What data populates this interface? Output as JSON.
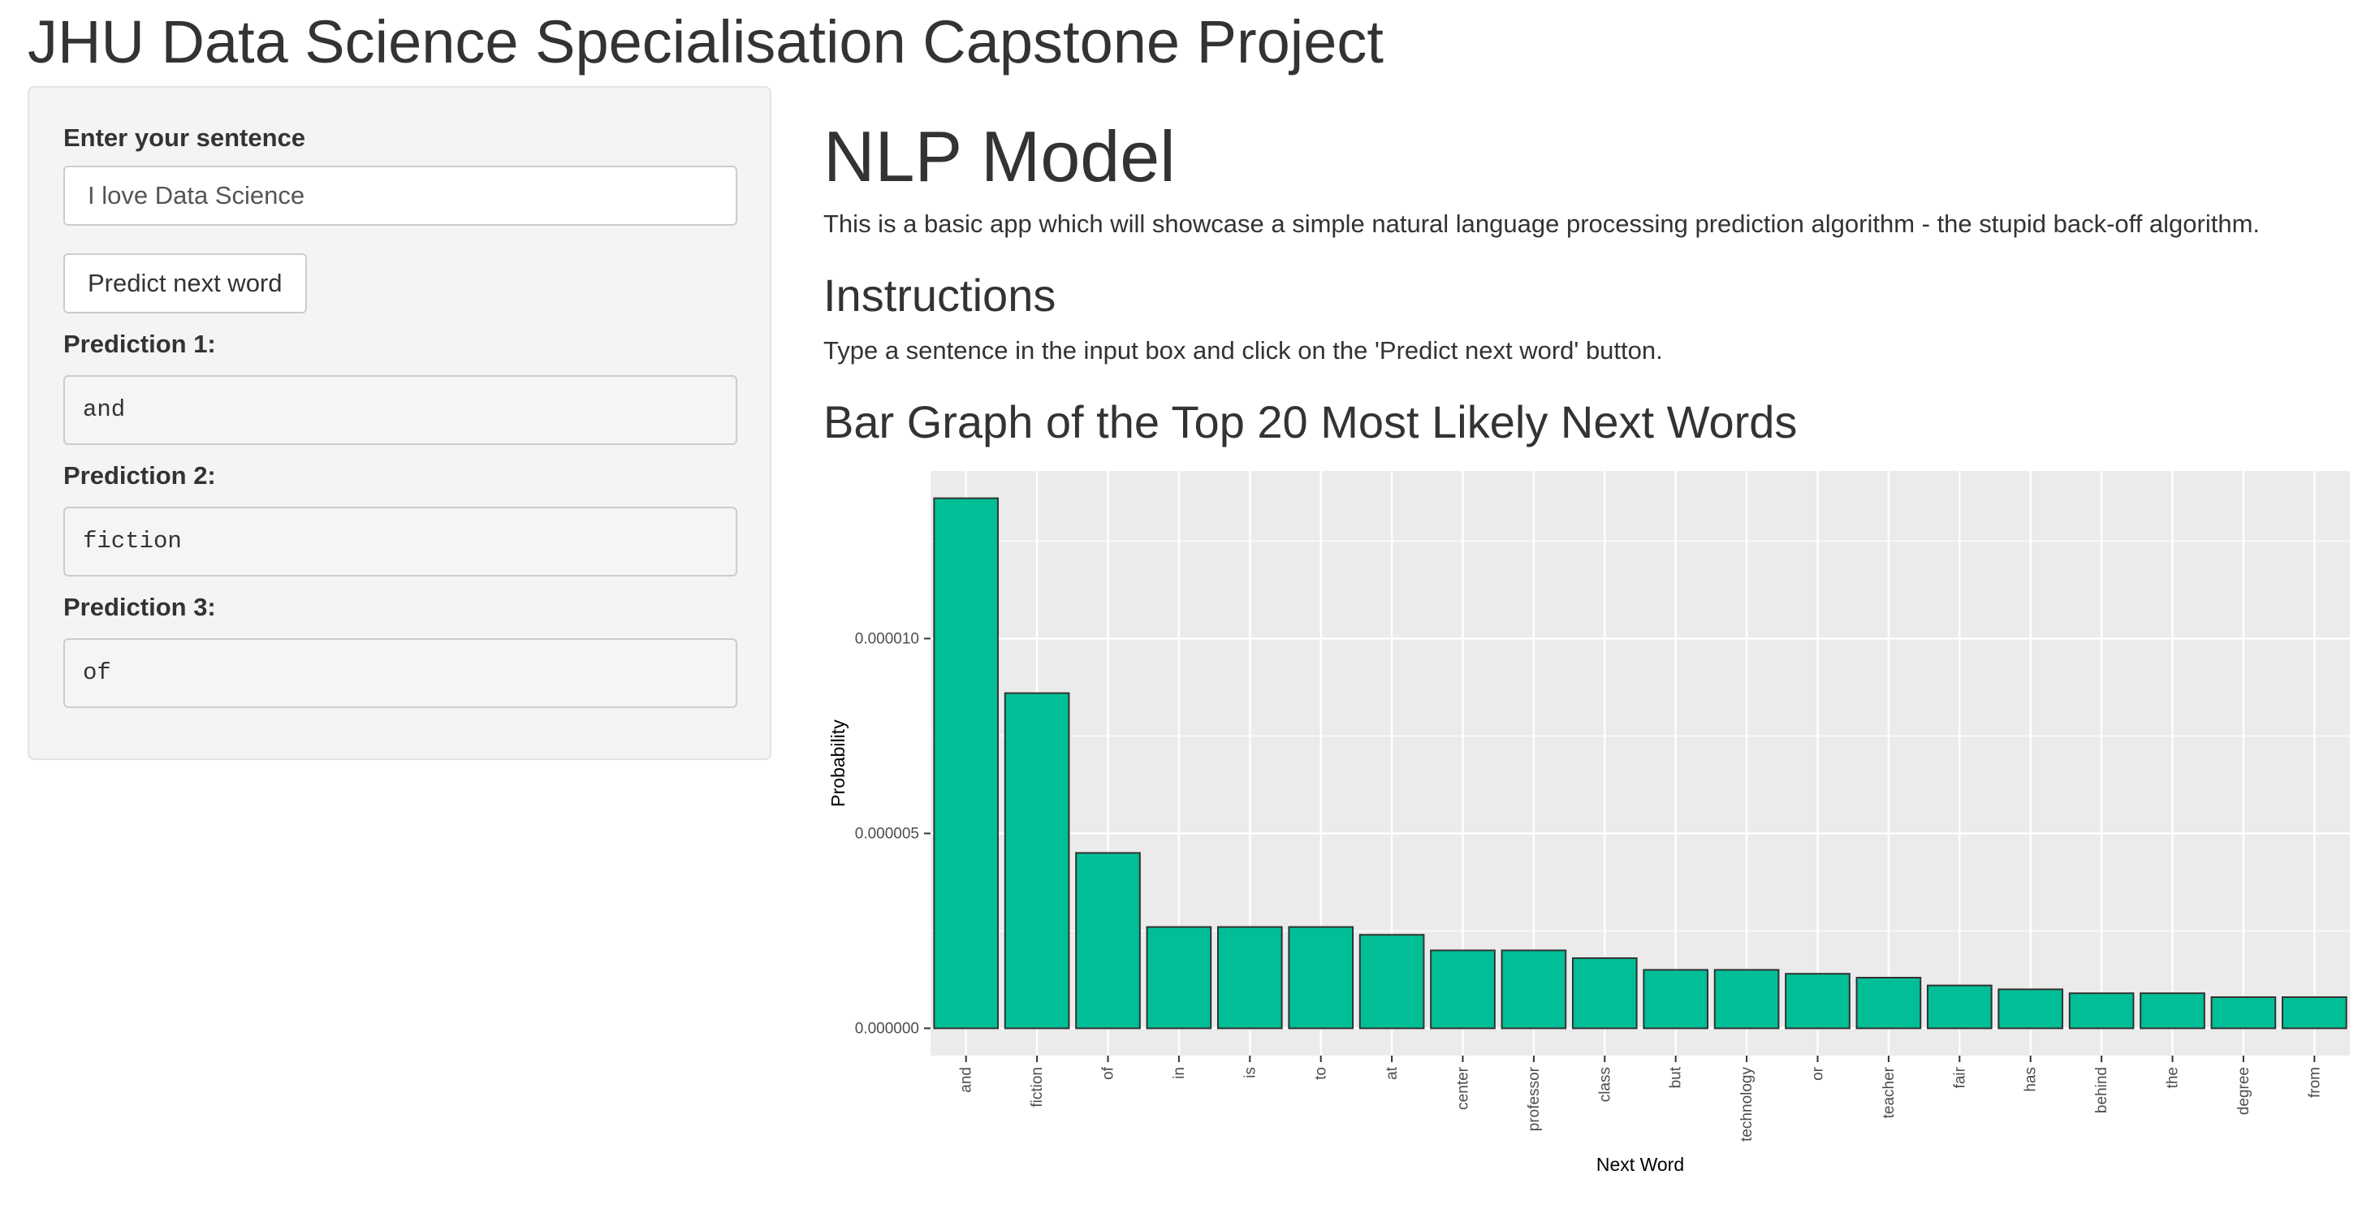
{
  "app": {
    "title": "JHU Data Science Specialisation Capstone Project"
  },
  "sidebar": {
    "input_label": "Enter your sentence",
    "input_value": "I love Data Science",
    "button_label": "Predict next word",
    "predictions": [
      {
        "label": "Prediction 1:",
        "value": "and"
      },
      {
        "label": "Prediction 2:",
        "value": "fiction"
      },
      {
        "label": "Prediction 3:",
        "value": "of"
      }
    ]
  },
  "main": {
    "title": "NLP Model",
    "description": "This is a basic app which will showcase a simple natural language processing prediction algorithm - the stupid back-off algorithm.",
    "instructions_heading": "Instructions",
    "instructions_text": "Type a sentence in the input box and click on the 'Predict next word' button.",
    "chart_heading": "Bar Graph of the Top 20 Most Likely Next Words"
  },
  "colors": {
    "bar_fill": "#00BF96",
    "bar_stroke": "#333333",
    "panel_background": "#EBEBEB",
    "grid": "#FFFFFF"
  },
  "chart_data": {
    "type": "bar",
    "title": "",
    "xlabel": "Next Word",
    "ylabel": "Probability",
    "categories": [
      "and",
      "fiction",
      "of",
      "in",
      "is",
      "to",
      "at",
      "center",
      "professor",
      "class",
      "but",
      "technology",
      "or",
      "teacher",
      "fair",
      "has",
      "behind",
      "the",
      "degree",
      "from"
    ],
    "values": [
      1.36e-05,
      8.6e-06,
      4.5e-06,
      2.6e-06,
      2.6e-06,
      2.6e-06,
      2.4e-06,
      2e-06,
      2e-06,
      1.8e-06,
      1.5e-06,
      1.5e-06,
      1.4e-06,
      1.3e-06,
      1.1e-06,
      1e-06,
      9e-07,
      9e-07,
      8e-07,
      8e-07
    ],
    "ylim": [
      -7e-07,
      1.43e-05
    ],
    "yticks": [
      0,
      5e-06,
      1e-05
    ],
    "ytick_labels": [
      "0.000000",
      "0.000005",
      "0.000010"
    ],
    "grid": true,
    "legend": "none"
  }
}
